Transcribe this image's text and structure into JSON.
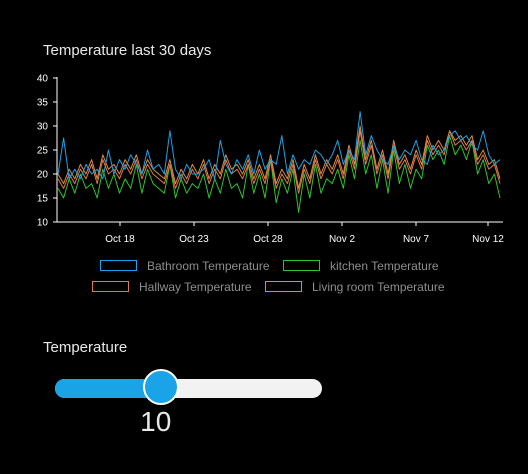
{
  "colors": {
    "background": "#000000",
    "axis": "#ffffff",
    "bathroom": "#1aa3e6",
    "kitchen": "#2bc52b",
    "hallway": "#e07a4a",
    "living": "#e08a3c",
    "slider_fill": "#1aa3e6",
    "slider_track": "#f2f2f2"
  },
  "chart_data": {
    "type": "line",
    "title": "Temperature last 30 days",
    "ylim": [
      10,
      40
    ],
    "yticks": [
      "10",
      "15",
      "20",
      "25",
      "30",
      "35",
      "40"
    ],
    "xticks": [
      "Oct 18",
      "Oct 23",
      "Oct 28",
      "Nov 2",
      "Nov 7",
      "Nov 12"
    ],
    "x_start": "Oct 14",
    "x_end": "Nov 13",
    "grid": false,
    "legend_position": "bottom",
    "series": [
      {
        "name": "Bathroom Temperature",
        "color_key": "bathroom",
        "values": [
          20,
          27.5,
          19,
          21,
          19,
          22,
          20,
          21,
          19,
          25,
          20,
          23,
          21,
          24,
          22,
          20,
          25,
          21,
          22,
          20,
          29,
          21,
          19,
          22,
          20,
          20,
          21,
          23,
          19,
          27,
          22,
          20,
          23,
          21,
          24,
          20,
          25,
          21,
          23,
          22,
          28,
          20,
          24,
          21,
          23,
          22,
          25,
          24,
          22,
          24,
          27,
          22,
          25,
          23,
          33,
          24,
          28,
          25,
          23,
          22,
          26,
          23,
          25,
          24,
          27,
          23,
          22,
          26,
          24,
          25,
          28,
          29,
          27,
          28,
          26,
          25,
          29,
          24,
          22,
          23
        ]
      },
      {
        "name": "kitchen Temperature",
        "color_key": "kitchen",
        "values": [
          17,
          15,
          19,
          16,
          20,
          17,
          18,
          15,
          21,
          17,
          20,
          16,
          19,
          17,
          22,
          16,
          21,
          18,
          17,
          16,
          22,
          15,
          19,
          16,
          18,
          17,
          20,
          15,
          19,
          16,
          21,
          17,
          18,
          15,
          22,
          16,
          20,
          15,
          23,
          14,
          19,
          16,
          21,
          12,
          20,
          15,
          22,
          16,
          19,
          18,
          21,
          17,
          24,
          19,
          27,
          20,
          24,
          17,
          23,
          16,
          25,
          18,
          22,
          17,
          21,
          19,
          26,
          23,
          25,
          22,
          28,
          24,
          26,
          23,
          27,
          20,
          23,
          18,
          20,
          15
        ]
      },
      {
        "name": "Hallway Temperature",
        "color_key": "hallway",
        "values": [
          19,
          17,
          20,
          18,
          21,
          19,
          22,
          18,
          23,
          20,
          21,
          19,
          22,
          20,
          23,
          19,
          22,
          20,
          19,
          18,
          22,
          17,
          20,
          18,
          21,
          19,
          22,
          18,
          21,
          19,
          23,
          20,
          21,
          19,
          22,
          18,
          21,
          18,
          23,
          17,
          20,
          18,
          22,
          16,
          21,
          18,
          23,
          19,
          22,
          20,
          23,
          19,
          25,
          21,
          29,
          22,
          26,
          20,
          24,
          19,
          26,
          21,
          23,
          20,
          24,
          21,
          27,
          24,
          26,
          24,
          29,
          26,
          27,
          25,
          27,
          22,
          24,
          21,
          22,
          18
        ]
      },
      {
        "name": "Living room Temperature",
        "color_key": "living",
        "values": [
          20,
          18,
          21,
          19,
          22,
          20,
          23,
          19,
          24,
          21,
          22,
          20,
          23,
          21,
          24,
          20,
          23,
          21,
          20,
          19,
          23,
          18,
          21,
          19,
          22,
          20,
          23,
          19,
          22,
          20,
          24,
          21,
          22,
          20,
          23,
          19,
          22,
          19,
          24,
          18,
          21,
          19,
          23,
          17,
          22,
          19,
          24,
          20,
          23,
          21,
          24,
          20,
          26,
          22,
          30,
          23,
          27,
          21,
          25,
          20,
          27,
          22,
          24,
          21,
          25,
          22,
          28,
          25,
          27,
          25,
          29,
          27,
          28,
          26,
          28,
          23,
          25,
          22,
          23,
          19
        ]
      }
    ]
  },
  "slider": {
    "title": "Temperature",
    "value": "10",
    "min": 0,
    "max": 40,
    "level": 10
  }
}
